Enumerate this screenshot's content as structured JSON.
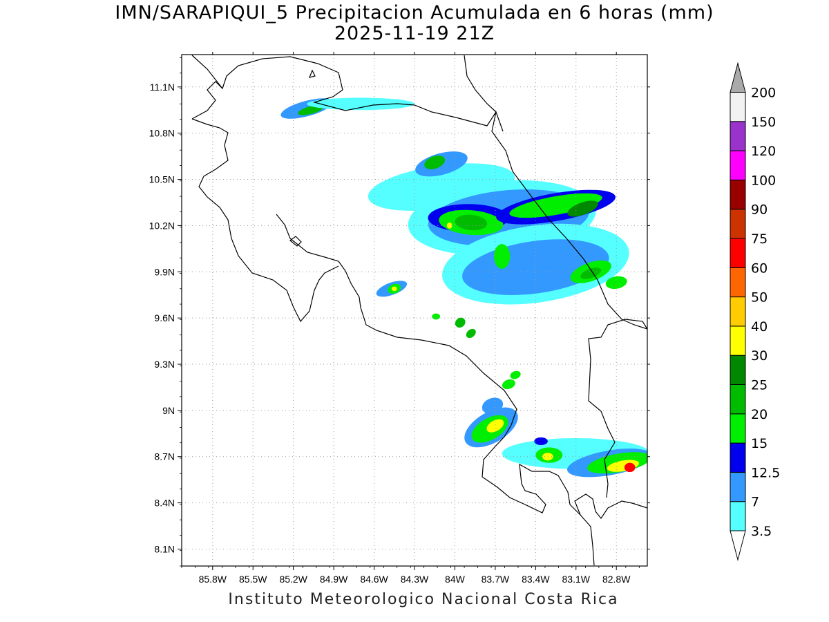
{
  "title": {
    "line1": "IMN/SARAPIQUI_5 Precipitacion Acumulada en 6 horas (mm)",
    "line2": "2025-11-19 21Z"
  },
  "footer": "Instituto Meteorologico Nacional Costa Rica",
  "map": {
    "lon_range": [
      -86.03,
      -82.57
    ],
    "lat_range": [
      7.99,
      11.31
    ],
    "x_ticks": [
      {
        "value": -85.8,
        "label": "85.8W"
      },
      {
        "value": -85.5,
        "label": "85.5W"
      },
      {
        "value": -85.2,
        "label": "85.2W"
      },
      {
        "value": -84.9,
        "label": "84.9W"
      },
      {
        "value": -84.6,
        "label": "84.6W"
      },
      {
        "value": -84.3,
        "label": "84.3W"
      },
      {
        "value": -84.0,
        "label": "84W"
      },
      {
        "value": -83.7,
        "label": "83.7W"
      },
      {
        "value": -83.4,
        "label": "83.4W"
      },
      {
        "value": -83.1,
        "label": "83.1W"
      },
      {
        "value": -82.8,
        "label": "82.8W"
      }
    ],
    "y_ticks": [
      {
        "value": 11.1,
        "label": "11.1N"
      },
      {
        "value": 10.8,
        "label": "10.8N"
      },
      {
        "value": 10.5,
        "label": "10.5N"
      },
      {
        "value": 10.2,
        "label": "10.2N"
      },
      {
        "value": 9.9,
        "label": "9.9N"
      },
      {
        "value": 9.6,
        "label": "9.6N"
      },
      {
        "value": 9.3,
        "label": "9.3N"
      },
      {
        "value": 9.0,
        "label": "9N"
      },
      {
        "value": 8.7,
        "label": "8.7N"
      },
      {
        "value": 8.4,
        "label": "8.4N"
      },
      {
        "value": 8.1,
        "label": "8.1N"
      }
    ],
    "grid": "dotted"
  },
  "colorbar": {
    "levels": [
      {
        "label": "3.5",
        "color": "#55ffff"
      },
      {
        "label": "7",
        "color": "#3399ff"
      },
      {
        "label": "12.5",
        "color": "#0000ee"
      },
      {
        "label": "15",
        "color": "#00ee00"
      },
      {
        "label": "20",
        "color": "#00bb00"
      },
      {
        "label": "25",
        "color": "#008800"
      },
      {
        "label": "30",
        "color": "#ffff00"
      },
      {
        "label": "40",
        "color": "#ffcc00"
      },
      {
        "label": "50",
        "color": "#ff6600"
      },
      {
        "label": "60",
        "color": "#ff0000"
      },
      {
        "label": "75",
        "color": "#cc3300"
      },
      {
        "label": "90",
        "color": "#990000"
      },
      {
        "label": "100",
        "color": "#ff00ff"
      },
      {
        "label": "120",
        "color": "#9933cc"
      },
      {
        "label": "150",
        "color": "#f2f2f2"
      },
      {
        "label": "200",
        "color": "#aaaaaa"
      }
    ],
    "bottom_arrow_color": "#ffffff",
    "top_arrow_color": "#aaaaaa"
  },
  "precip_cells": [
    {
      "lon": -85.1,
      "lat": 10.96,
      "rx": 0.2,
      "ry": 0.05,
      "rot": -15,
      "level": 1
    },
    {
      "lon": -85.07,
      "lat": 10.95,
      "rx": 0.1,
      "ry": 0.025,
      "rot": -15,
      "level": 4
    },
    {
      "lon": -84.7,
      "lat": 10.99,
      "rx": 0.4,
      "ry": 0.04,
      "rot": 0,
      "level": 0
    },
    {
      "lon": -84.1,
      "lat": 10.45,
      "rx": 0.55,
      "ry": 0.14,
      "rot": -8,
      "level": 0
    },
    {
      "lon": -84.1,
      "lat": 10.6,
      "rx": 0.2,
      "ry": 0.07,
      "rot": -15,
      "level": 1
    },
    {
      "lon": -84.15,
      "lat": 10.61,
      "rx": 0.08,
      "ry": 0.04,
      "rot": -20,
      "level": 4
    },
    {
      "lon": -83.65,
      "lat": 10.25,
      "rx": 0.7,
      "ry": 0.24,
      "rot": -5,
      "level": 0
    },
    {
      "lon": -83.6,
      "lat": 10.25,
      "rx": 0.6,
      "ry": 0.18,
      "rot": -5,
      "level": 1
    },
    {
      "lon": -83.9,
      "lat": 10.25,
      "rx": 0.3,
      "ry": 0.09,
      "rot": 0,
      "level": 2
    },
    {
      "lon": -83.88,
      "lat": 10.22,
      "rx": 0.24,
      "ry": 0.08,
      "rot": 5,
      "level": 3
    },
    {
      "lon": -83.88,
      "lat": 10.22,
      "rx": 0.12,
      "ry": 0.05,
      "rot": 5,
      "level": 4
    },
    {
      "lon": -84.04,
      "lat": 10.2,
      "rx": 0.02,
      "ry": 0.02,
      "rot": 0,
      "level": 6
    },
    {
      "lon": -83.25,
      "lat": 10.32,
      "rx": 0.45,
      "ry": 0.09,
      "rot": -10,
      "level": 2
    },
    {
      "lon": -83.25,
      "lat": 10.33,
      "rx": 0.35,
      "ry": 0.06,
      "rot": -10,
      "level": 3
    },
    {
      "lon": -83.05,
      "lat": 10.31,
      "rx": 0.12,
      "ry": 0.04,
      "rot": -20,
      "level": 5
    },
    {
      "lon": -83.4,
      "lat": 9.95,
      "rx": 0.7,
      "ry": 0.25,
      "rot": -8,
      "level": 0
    },
    {
      "lon": -83.4,
      "lat": 9.93,
      "rx": 0.55,
      "ry": 0.17,
      "rot": -8,
      "level": 1
    },
    {
      "lon": -83.65,
      "lat": 10.0,
      "rx": 0.06,
      "ry": 0.08,
      "rot": 0,
      "level": 3
    },
    {
      "lon": -82.99,
      "lat": 9.9,
      "rx": 0.16,
      "ry": 0.06,
      "rot": -20,
      "level": 3
    },
    {
      "lon": -82.99,
      "lat": 9.89,
      "rx": 0.08,
      "ry": 0.03,
      "rot": -20,
      "level": 4
    },
    {
      "lon": -82.8,
      "lat": 9.83,
      "rx": 0.08,
      "ry": 0.04,
      "rot": -10,
      "level": 3
    },
    {
      "lon": -84.47,
      "lat": 9.79,
      "rx": 0.12,
      "ry": 0.04,
      "rot": -20,
      "level": 1
    },
    {
      "lon": -84.45,
      "lat": 9.79,
      "rx": 0.05,
      "ry": 0.03,
      "rot": -20,
      "level": 3
    },
    {
      "lon": -84.45,
      "lat": 9.79,
      "rx": 0.02,
      "ry": 0.015,
      "rot": 0,
      "level": 6
    },
    {
      "lon": -84.14,
      "lat": 9.61,
      "rx": 0.03,
      "ry": 0.02,
      "rot": 0,
      "level": 3
    },
    {
      "lon": -83.96,
      "lat": 9.57,
      "rx": 0.04,
      "ry": 0.03,
      "rot": -40,
      "level": 4
    },
    {
      "lon": -83.88,
      "lat": 9.5,
      "rx": 0.04,
      "ry": 0.025,
      "rot": -40,
      "level": 4
    },
    {
      "lon": -83.55,
      "lat": 9.23,
      "rx": 0.04,
      "ry": 0.025,
      "rot": -20,
      "level": 3
    },
    {
      "lon": -83.6,
      "lat": 9.17,
      "rx": 0.05,
      "ry": 0.03,
      "rot": -20,
      "level": 3
    },
    {
      "lon": -83.72,
      "lat": 9.03,
      "rx": 0.08,
      "ry": 0.05,
      "rot": -20,
      "level": 1
    },
    {
      "lon": -83.73,
      "lat": 8.89,
      "rx": 0.22,
      "ry": 0.1,
      "rot": -30,
      "level": 1
    },
    {
      "lon": -83.74,
      "lat": 8.88,
      "rx": 0.15,
      "ry": 0.07,
      "rot": -30,
      "level": 3
    },
    {
      "lon": -83.7,
      "lat": 8.9,
      "rx": 0.07,
      "ry": 0.035,
      "rot": -30,
      "level": 6
    },
    {
      "lon": -83.1,
      "lat": 8.72,
      "rx": 0.55,
      "ry": 0.1,
      "rot": 0,
      "level": 0
    },
    {
      "lon": -82.85,
      "lat": 8.66,
      "rx": 0.32,
      "ry": 0.08,
      "rot": -10,
      "level": 1
    },
    {
      "lon": -82.78,
      "lat": 8.66,
      "rx": 0.24,
      "ry": 0.06,
      "rot": -10,
      "level": 3
    },
    {
      "lon": -82.75,
      "lat": 8.64,
      "rx": 0.12,
      "ry": 0.035,
      "rot": -10,
      "level": 6
    },
    {
      "lon": -82.7,
      "lat": 8.63,
      "rx": 0.04,
      "ry": 0.03,
      "rot": 0,
      "level": 9
    },
    {
      "lon": -83.3,
      "lat": 8.71,
      "rx": 0.1,
      "ry": 0.05,
      "rot": 0,
      "level": 3
    },
    {
      "lon": -83.31,
      "lat": 8.7,
      "rx": 0.04,
      "ry": 0.025,
      "rot": 0,
      "level": 6
    },
    {
      "lon": -83.36,
      "lat": 8.8,
      "rx": 0.05,
      "ry": 0.025,
      "rot": 0,
      "level": 2
    }
  ]
}
